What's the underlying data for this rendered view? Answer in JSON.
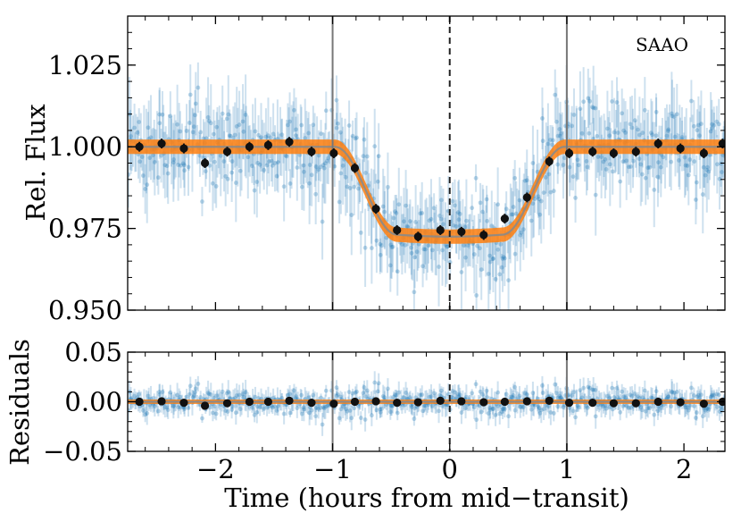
{
  "chart_data": [
    {
      "panel": "top",
      "type": "scatter",
      "annotation": "SAAO",
      "ylabel": "Rel. Flux",
      "xlim": [
        -2.75,
        2.35
      ],
      "ylim": [
        0.95,
        1.04
      ],
      "yticks": [
        0.95,
        0.975,
        1.0,
        1.025
      ],
      "ytick_labels": [
        "0.950",
        "0.975",
        "1.000",
        "1.025"
      ],
      "vlines_solid": [
        -1.0,
        1.0
      ],
      "vline_dashed": 0.0,
      "model": {
        "name": "transit model",
        "baseline": 1.0,
        "depth_min": 0.9725,
        "ingress_start": -0.98,
        "flat_bottom_start": -0.45,
        "flat_bottom_end": 0.45,
        "egress_end": 0.98,
        "band_halfwidth": 0.0022,
        "color": "#ff7f0e"
      },
      "binned": {
        "name": "binned data",
        "color": "#111111",
        "x": [
          -2.65,
          -2.46,
          -2.27,
          -2.09,
          -1.9,
          -1.71,
          -1.55,
          -1.37,
          -1.18,
          -0.99,
          -0.81,
          -0.63,
          -0.45,
          -0.27,
          -0.08,
          0.1,
          0.29,
          0.47,
          0.66,
          0.85,
          1.02,
          1.22,
          1.4,
          1.59,
          1.78,
          1.97,
          2.17,
          2.33
        ],
        "y": [
          1.0,
          1.001,
          0.9995,
          0.995,
          0.9985,
          1.0,
          1.0005,
          1.0015,
          0.9985,
          0.998,
          0.9935,
          0.981,
          0.9745,
          0.9725,
          0.9745,
          0.974,
          0.973,
          0.978,
          0.9845,
          0.9955,
          0.998,
          0.9985,
          0.998,
          0.9985,
          1.001,
          0.9995,
          0.998,
          1.001
        ],
        "yerr": [
          0.0015,
          0.0015,
          0.0015,
          0.0015,
          0.0015,
          0.0015,
          0.0015,
          0.0015,
          0.0015,
          0.0015,
          0.0015,
          0.0015,
          0.0015,
          0.0015,
          0.0015,
          0.0015,
          0.0015,
          0.0015,
          0.0015,
          0.0015,
          0.0015,
          0.0015,
          0.0015,
          0.0015,
          0.0015,
          0.0015,
          0.0015,
          0.0015
        ]
      },
      "raw": {
        "name": "unbinned data",
        "color": "#1f77b4",
        "n_points": 600,
        "scatter_sigma": 0.0075
      }
    },
    {
      "panel": "bottom",
      "type": "scatter",
      "ylabel": "Residuals",
      "xlabel": "Time (hours from mid−transit)",
      "xlim": [
        -2.75,
        2.35
      ],
      "ylim": [
        -0.05,
        0.05
      ],
      "yticks": [
        -0.05,
        0.0,
        0.05
      ],
      "ytick_labels": [
        "−0.05",
        "0.00",
        "0.05"
      ],
      "xticks": [
        -2,
        -1,
        0,
        1,
        2
      ],
      "xtick_labels": [
        "−2",
        "−1",
        "0",
        "1",
        "2"
      ],
      "zero_line": 0.0,
      "binned": {
        "x": [
          -2.65,
          -2.46,
          -2.27,
          -2.09,
          -1.9,
          -1.71,
          -1.55,
          -1.37,
          -1.18,
          -0.99,
          -0.81,
          -0.63,
          -0.45,
          -0.27,
          -0.08,
          0.1,
          0.29,
          0.47,
          0.66,
          0.85,
          1.02,
          1.22,
          1.4,
          1.59,
          1.78,
          1.97,
          2.17,
          2.33
        ],
        "y": [
          0.0,
          0.0005,
          -0.001,
          -0.004,
          -0.0015,
          0.0,
          0.0,
          0.001,
          -0.001,
          -0.002,
          0.0,
          0.0005,
          -0.001,
          -0.0005,
          0.001,
          0.0005,
          -0.0005,
          0.0,
          0.0005,
          0.001,
          -0.001,
          -0.001,
          -0.0015,
          -0.0015,
          0.0,
          -0.0005,
          -0.002,
          0.0
        ],
        "yerr": [
          0.0015,
          0.0015,
          0.0015,
          0.0015,
          0.0015,
          0.0015,
          0.0015,
          0.0015,
          0.0015,
          0.0015,
          0.0015,
          0.0015,
          0.0015,
          0.0015,
          0.0015,
          0.0015,
          0.0015,
          0.0015,
          0.0015,
          0.0015,
          0.0015,
          0.0015,
          0.0015,
          0.0015,
          0.0015,
          0.0015,
          0.0015,
          0.0015
        ]
      },
      "raw": {
        "name": "residual data",
        "color": "#1f77b4",
        "n_points": 600,
        "scatter_sigma": 0.0075
      }
    }
  ]
}
